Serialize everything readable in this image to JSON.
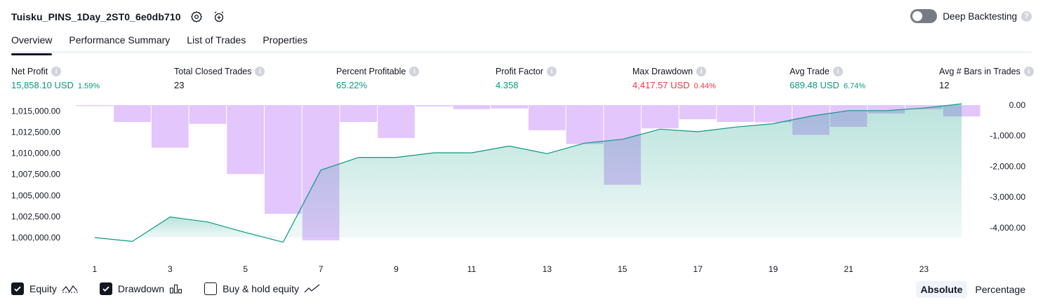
{
  "header": {
    "title": "Tuisku_PINS_1Day_2ST0_6e0db710",
    "settings_icon": "gear-icon",
    "alert_icon": "alarm-add-icon",
    "deep_backtesting_label": "Deep Backtesting",
    "deep_backtesting_enabled": false
  },
  "tabs": [
    {
      "label": "Overview",
      "active": true
    },
    {
      "label": "Performance Summary",
      "active": false
    },
    {
      "label": "List of Trades",
      "active": false
    },
    {
      "label": "Properties",
      "active": false
    }
  ],
  "metrics": [
    {
      "label": "Net Profit",
      "value": "15,858.10 USD",
      "sub": "1.59%",
      "color": "#089981"
    },
    {
      "label": "Total Closed Trades",
      "value": "23",
      "sub": "",
      "color": "#131722"
    },
    {
      "label": "Percent Profitable",
      "value": "65.22%",
      "sub": "",
      "color": "#089981"
    },
    {
      "label": "Profit Factor",
      "value": "4.358",
      "sub": "",
      "color": "#089981"
    },
    {
      "label": "Max Drawdown",
      "value": "4,417.57 USD",
      "sub": "0.44%",
      "color": "#f23645"
    },
    {
      "label": "Avg Trade",
      "value": "689.48 USD",
      "sub": "6.74%",
      "color": "#089981"
    },
    {
      "label": "Avg # Bars in Trades",
      "value": "12",
      "sub": "",
      "color": "#131722"
    }
  ],
  "chart_data": {
    "type": "line",
    "x": [
      1,
      2,
      3,
      4,
      5,
      6,
      7,
      8,
      9,
      10,
      11,
      12,
      13,
      14,
      15,
      16,
      17,
      18,
      19,
      20,
      21,
      22,
      23,
      24
    ],
    "x_tick_labels": [
      "1",
      "3",
      "5",
      "7",
      "9",
      "11",
      "13",
      "15",
      "17",
      "19",
      "21",
      "23"
    ],
    "left_axis": {
      "ticks": [
        "1,015,000.00",
        "1,012,500.00",
        "1,010,000.00",
        "1,007,500.00",
        "1,005,000.00",
        "1,002,500.00",
        "1,000,000.00"
      ],
      "ylim": [
        999000,
        1015700
      ]
    },
    "right_axis": {
      "ticks": [
        "0.00",
        "-1,000.00",
        "-2,000.00",
        "-3,000.00",
        "-4,000.00"
      ],
      "ylim": [
        -4600,
        0
      ]
    },
    "series": [
      {
        "name": "Equity",
        "axis": "left",
        "color_gain": "#089981",
        "color_loss": "#f23645",
        "values": [
          1000000,
          999550,
          1002450,
          1001850,
          1000600,
          999450,
          1008000,
          1009500,
          1009500,
          1010050,
          1010050,
          1010850,
          1009950,
          1011200,
          1011650,
          1012850,
          1012550,
          1013100,
          1013500,
          1014400,
          1015050,
          1015050,
          1015350,
          1015858.1
        ]
      },
      {
        "name": "Drawdown",
        "axis": "right",
        "type": "bar",
        "color": "#e0c3fc",
        "values": [
          -30,
          -550,
          -1390,
          -610,
          -2250,
          -3550,
          -4417.57,
          -550,
          -1070,
          -40,
          -130,
          -110,
          -820,
          -1270,
          -2600,
          -760,
          -460,
          -550,
          -560,
          -970,
          -710,
          -270,
          -130,
          -370
        ]
      }
    ],
    "equity_baseline": 1000000
  },
  "legend": [
    {
      "label": "Equity",
      "checked": true,
      "icon": "equity-line-icon"
    },
    {
      "label": "Drawdown",
      "checked": true,
      "icon": "drawdown-bars-icon"
    },
    {
      "label": "Buy & hold equity",
      "checked": false,
      "icon": "buy-hold-line-icon"
    }
  ],
  "view_modes": [
    {
      "label": "Absolute",
      "active": true
    },
    {
      "label": "Percentage",
      "active": false
    }
  ]
}
